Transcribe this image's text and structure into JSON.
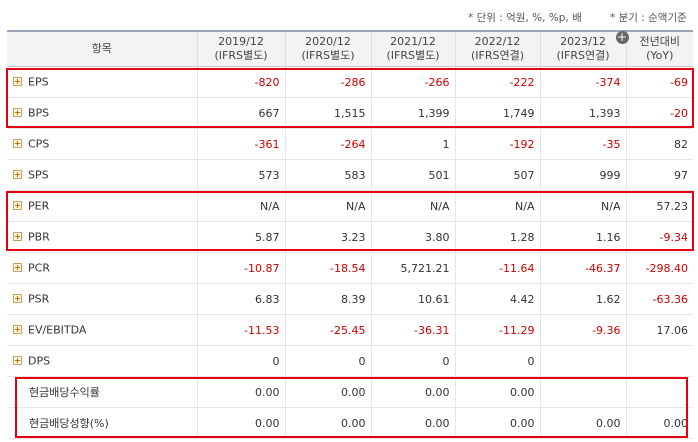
{
  "notes": {
    "unit": "* 단위 : 억원, %, %p, 배",
    "period": "* 분기 : 순액기준"
  },
  "header": {
    "item": "항목",
    "columns": [
      {
        "year": "2019/12",
        "type": "(IFRS별도)"
      },
      {
        "year": "2020/12",
        "type": "(IFRS별도)"
      },
      {
        "year": "2021/12",
        "type": "(IFRS별도)"
      },
      {
        "year": "2022/12",
        "type": "(IFRS연결)"
      },
      {
        "year": "2023/12",
        "type": "(IFRS연결)"
      }
    ],
    "yoy": {
      "line1": "전년대비",
      "line2": "(YoY)"
    },
    "add_icon": "plus-circle-icon"
  },
  "rows": [
    {
      "label": "EPS",
      "expand": true,
      "values": [
        "-820",
        "-286",
        "-266",
        "-222",
        "-374",
        "-69"
      ]
    },
    {
      "label": "BPS",
      "expand": true,
      "values": [
        "667",
        "1,515",
        "1,399",
        "1,749",
        "1,393",
        "-20"
      ]
    },
    {
      "label": "CPS",
      "expand": true,
      "values": [
        "-361",
        "-264",
        "1",
        "-192",
        "-35",
        "82"
      ]
    },
    {
      "label": "SPS",
      "expand": true,
      "values": [
        "573",
        "583",
        "501",
        "507",
        "999",
        "97"
      ]
    },
    {
      "label": "PER",
      "expand": true,
      "values": [
        "N/A",
        "N/A",
        "N/A",
        "N/A",
        "N/A",
        "57.23"
      ]
    },
    {
      "label": "PBR",
      "expand": true,
      "values": [
        "5.87",
        "3.23",
        "3.80",
        "1.28",
        "1.16",
        "-9.34"
      ]
    },
    {
      "label": "PCR",
      "expand": true,
      "values": [
        "-10.87",
        "-18.54",
        "5,721.21",
        "-11.64",
        "-46.37",
        "-298.40"
      ]
    },
    {
      "label": "PSR",
      "expand": true,
      "values": [
        "6.83",
        "8.39",
        "10.61",
        "4.42",
        "1.62",
        "-63.36"
      ]
    },
    {
      "label": "EV/EBITDA",
      "expand": true,
      "values": [
        "-11.53",
        "-25.45",
        "-36.31",
        "-11.29",
        "-9.36",
        "17.06"
      ]
    },
    {
      "label": "DPS",
      "expand": true,
      "values": [
        "0",
        "0",
        "0",
        "0",
        "",
        ""
      ]
    },
    {
      "label": "현금배당수익률",
      "expand": false,
      "values": [
        "0.00",
        "0.00",
        "0.00",
        "0.00",
        "",
        ""
      ]
    },
    {
      "label": "현금배당성향(%)",
      "expand": false,
      "values": [
        "0.00",
        "0.00",
        "0.00",
        "0.00",
        "0.00",
        "0.00"
      ]
    }
  ],
  "colors": {
    "negative": "#cc0000",
    "highlight": "#e60012",
    "header_bg": "#f3f3f3"
  }
}
